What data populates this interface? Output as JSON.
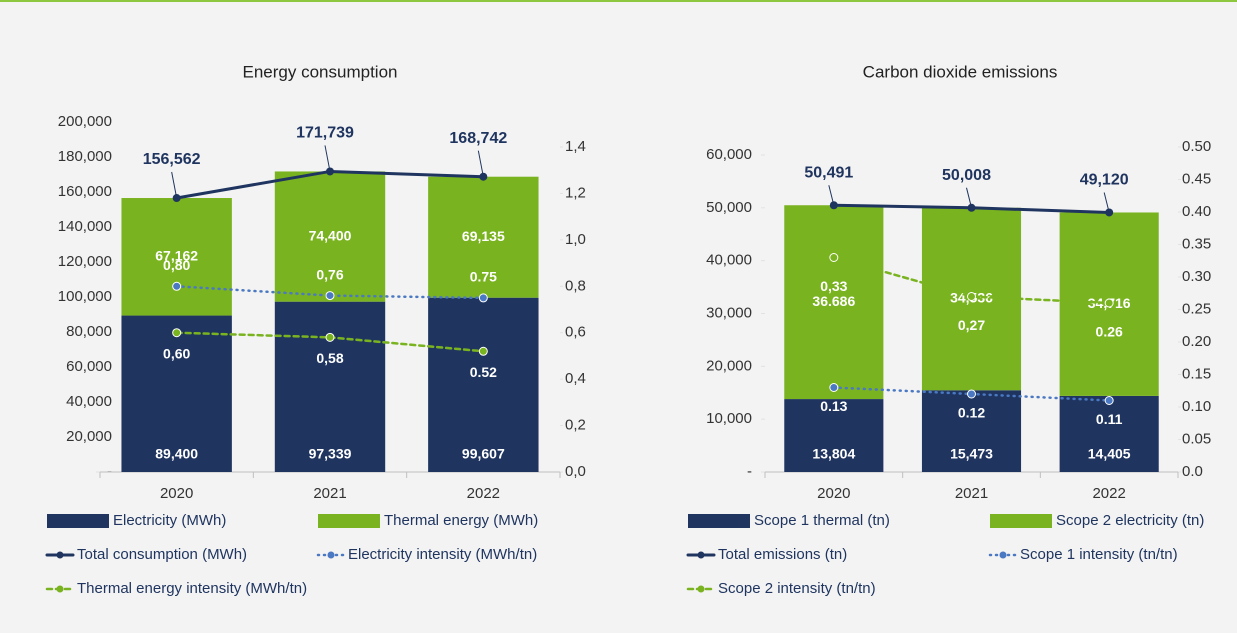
{
  "chart_data": [
    {
      "type": "bar",
      "stacked": true,
      "title": "Energy consumption",
      "categories": [
        "2020",
        "2021",
        "2022"
      ],
      "ylim": [
        0,
        200000
      ],
      "yticks": [
        {
          "value": 0,
          "label": "-"
        },
        {
          "value": 20000,
          "label": "20,000"
        },
        {
          "value": 40000,
          "label": "40,000"
        },
        {
          "value": 60000,
          "label": "60,000"
        },
        {
          "value": 80000,
          "label": "80,000"
        },
        {
          "value": 100000,
          "label": "100,000"
        },
        {
          "value": 120000,
          "label": "120,000"
        },
        {
          "value": 140000,
          "label": "140,000"
        },
        {
          "value": 160000,
          "label": "160,000"
        },
        {
          "value": 180000,
          "label": "180,000"
        },
        {
          "value": 200000,
          "label": "200,000"
        }
      ],
      "y2lim": [
        0,
        1.4
      ],
      "y2ticks": [
        {
          "value": 0,
          "label": "0,0"
        },
        {
          "value": 0.2,
          "label": "0,2"
        },
        {
          "value": 0.4,
          "label": "0,4"
        },
        {
          "value": 0.6,
          "label": "0,6"
        },
        {
          "value": 0.8,
          "label": "0,8"
        },
        {
          "value": 1.0,
          "label": "1,0"
        },
        {
          "value": 1.2,
          "label": "1,2"
        },
        {
          "value": 1.4,
          "label": "1,4"
        }
      ],
      "grid": false,
      "series": [
        {
          "name": "Electricity (MWh)",
          "type": "bar",
          "color": "#1f3560",
          "values": [
            89400,
            97339,
            99607
          ],
          "value_labels": [
            "89,400",
            "97,339",
            "99,607"
          ]
        },
        {
          "name": "Thermal energy (MWh)",
          "type": "bar",
          "color": "#7ab320",
          "values": [
            67162,
            74400,
            69135
          ],
          "value_labels": [
            "67,162",
            "74,400",
            "69,135"
          ]
        },
        {
          "name": "Total consumption (MWh)",
          "type": "line",
          "style": "solid",
          "color": "#1f3560",
          "values": [
            156562,
            171739,
            168742
          ],
          "value_labels": [
            "156,562",
            "171,739",
            "168,742"
          ]
        },
        {
          "name": "Electricity intensity (MWh/tn)",
          "type": "line",
          "style": "dotted",
          "axis": "y2",
          "color": "#4a78c2",
          "values": [
            0.8,
            0.76,
            0.75
          ],
          "value_labels": [
            "0,80",
            "0,76",
            "0.75"
          ]
        },
        {
          "name": "Thermal energy intensity (MWh/tn)",
          "type": "line",
          "style": "dashed",
          "axis": "y2",
          "color": "#7ab320",
          "values": [
            0.6,
            0.58,
            0.52
          ],
          "value_labels": [
            "0,60",
            "0,58",
            "0.52"
          ]
        }
      ]
    },
    {
      "type": "bar",
      "stacked": true,
      "title": "Carbon dioxide emissions",
      "categories": [
        "2020",
        "2021",
        "2022"
      ],
      "ylim": [
        0,
        60000
      ],
      "yticks": [
        {
          "value": 0,
          "label": "-"
        },
        {
          "value": 10000,
          "label": "10,000"
        },
        {
          "value": 20000,
          "label": "20,000"
        },
        {
          "value": 30000,
          "label": "30,000"
        },
        {
          "value": 40000,
          "label": "40,000"
        },
        {
          "value": 50000,
          "label": "50,000"
        },
        {
          "value": 60000,
          "label": "60,000"
        }
      ],
      "y2lim": [
        0,
        0.5
      ],
      "y2ticks": [
        {
          "value": 0,
          "label": "0.0"
        },
        0.05,
        {
          "value": 0.1,
          "label": "0.10"
        },
        0.15,
        {
          "value": 0.2,
          "label": "0.20"
        },
        0.25,
        {
          "value": 0.3,
          "label": "0.30"
        },
        0.35,
        {
          "value": 0.4,
          "label": "0.40"
        },
        0.45,
        {
          "value": 0.5,
          "label": "0.50"
        }
      ],
      "grid": false,
      "series": [
        {
          "name": "Scope 1 thermal (tn)",
          "type": "bar",
          "color": "#1f3560",
          "values": [
            13804,
            15473,
            14405
          ],
          "value_labels": [
            "13,804",
            "15,473",
            "14,405"
          ]
        },
        {
          "name": "Scope 2  electricity (tn)",
          "type": "bar",
          "color": "#7ab320",
          "values": [
            36686,
            34536,
            34716
          ],
          "value_labels": [
            "36.686",
            "34,536",
            "34,716"
          ]
        },
        {
          "name": "Total emissions (tn)",
          "type": "line",
          "style": "solid",
          "color": "#1f3560",
          "values": [
            50491,
            50008,
            49120
          ],
          "value_labels": [
            "50,491",
            "50,008",
            "49,120"
          ]
        },
        {
          "name": "Scope 1 intensity (tn/tn)",
          "type": "line",
          "style": "dotted",
          "axis": "y2",
          "color": "#4a78c2",
          "values": [
            0.13,
            0.12,
            0.11
          ],
          "value_labels": [
            "0.13",
            "0.12",
            "0.11"
          ]
        },
        {
          "name": "Scope 2 intensity (tn/tn)",
          "type": "line",
          "style": "dashed",
          "axis": "y2",
          "color": "#7ab320",
          "values": [
            0.33,
            0.27,
            0.26
          ],
          "value_labels": [
            "0,33",
            "0,27",
            "0.26"
          ]
        }
      ]
    }
  ]
}
